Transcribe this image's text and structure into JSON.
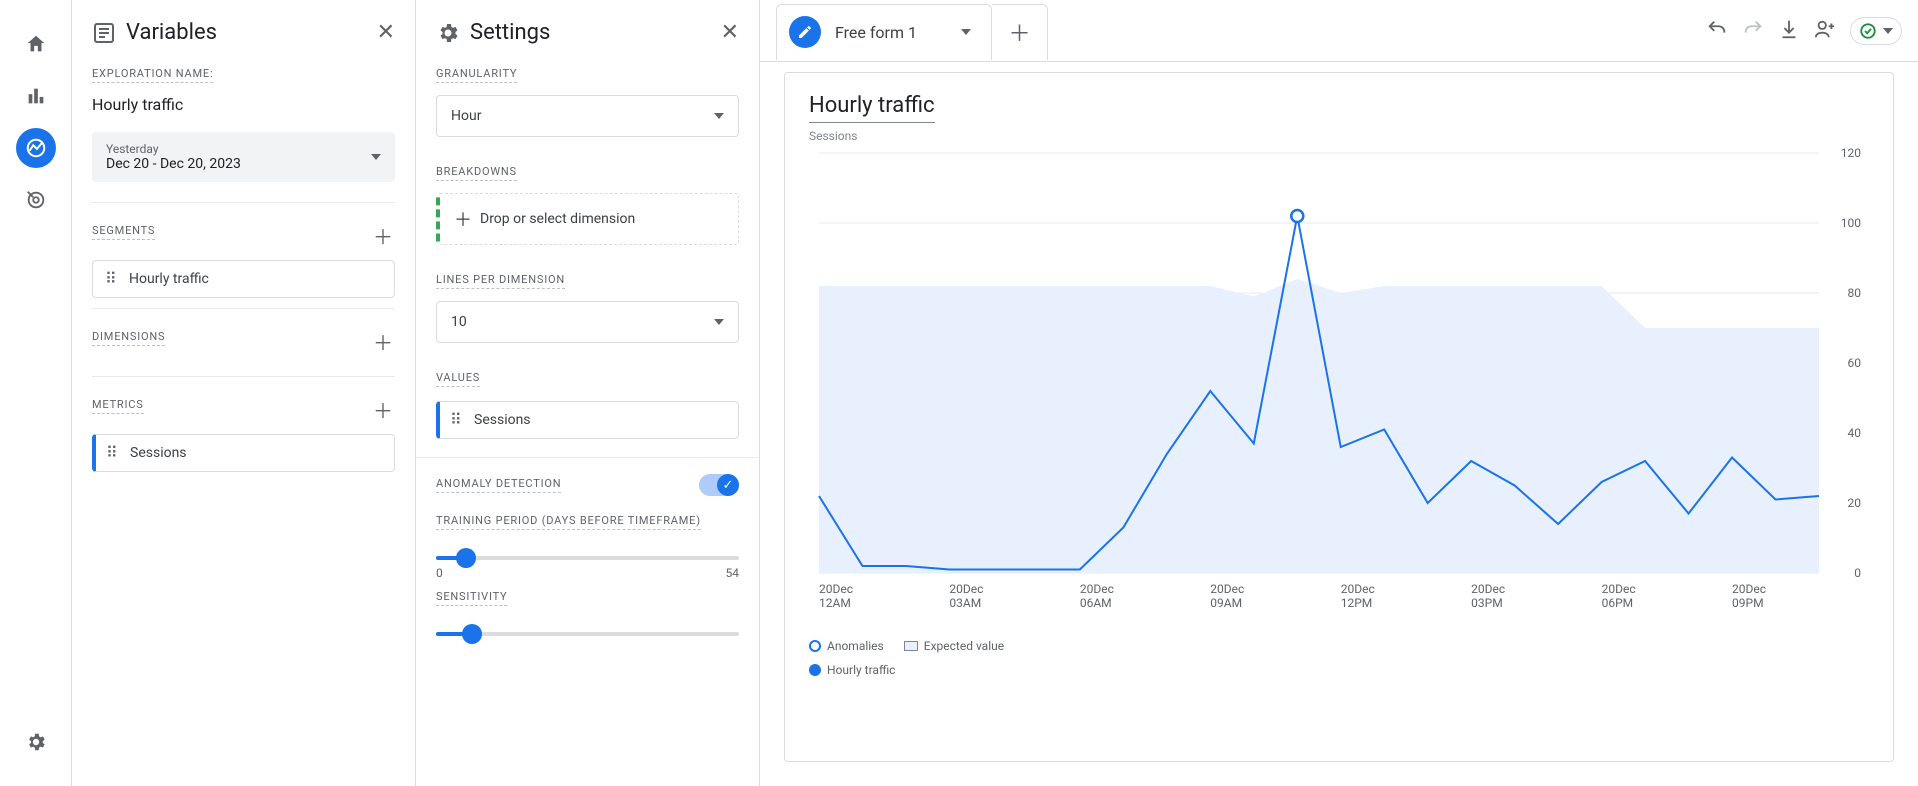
{
  "nav": {
    "icons": [
      "home",
      "reports",
      "explore",
      "advertising"
    ],
    "active": "explore"
  },
  "variables": {
    "title": "Variables",
    "exploration_label": "EXPLORATION NAME:",
    "exploration_value": "Hourly traffic",
    "date_label": "Yesterday",
    "date_range": "Dec 20 - Dec 20, 2023",
    "segments_label": "SEGMENTS",
    "segments": [
      "Hourly traffic"
    ],
    "dimensions_label": "DIMENSIONS",
    "metrics_label": "METRICS",
    "metrics": [
      "Sessions"
    ]
  },
  "settings": {
    "title": "Settings",
    "granularity_label": "GRANULARITY",
    "granularity_value": "Hour",
    "breakdowns_label": "BREAKDOWNS",
    "breakdowns_placeholder": "Drop or select dimension",
    "lines_label": "LINES PER DIMENSION",
    "lines_value": "10",
    "values_label": "VALUES",
    "values": [
      "Sessions"
    ],
    "anomaly_label": "ANOMALY DETECTION",
    "anomaly_on": true,
    "training_label": "TRAINING PERIOD (DAYS BEFORE TIMEFRAME)",
    "training_min": "0",
    "training_max": "54",
    "training_pct": 10,
    "sensitivity_label": "SENSITIVITY",
    "sensitivity_pct": 12
  },
  "tabs": {
    "active_label": "Free form 1"
  },
  "chart": {
    "title": "Hourly traffic",
    "subtitle": "Sessions",
    "type": "line",
    "y_max": 120,
    "y_ticks": [
      0,
      20,
      40,
      60,
      80,
      100,
      120
    ],
    "x_labels": [
      "20Dec 12AM",
      "20Dec 03AM",
      "20Dec 06AM",
      "20Dec 09AM",
      "20Dec 12PM",
      "20Dec 03PM",
      "20Dec 06PM",
      "20Dec 09PM"
    ],
    "line_color": "#1a73e8",
    "band_color": "#e8f0fe",
    "grid_color": "#e8eaed",
    "series": [
      22,
      2,
      2,
      1,
      1,
      1,
      1,
      13,
      34,
      52,
      37,
      102,
      36,
      41,
      20,
      32,
      25,
      14,
      26,
      32,
      17,
      33,
      21,
      22
    ],
    "band_top": [
      82,
      82,
      82,
      82,
      82,
      82,
      82,
      82,
      82,
      82,
      79,
      84,
      80,
      82,
      82,
      82,
      82,
      82,
      82,
      70,
      70,
      70,
      70,
      70
    ],
    "band_bottom": [
      0,
      0,
      0,
      0,
      0,
      0,
      0,
      0,
      0,
      0,
      0,
      0,
      0,
      0,
      0,
      0,
      0,
      0,
      0,
      0,
      0,
      0,
      0,
      0
    ],
    "anomaly_index": 11,
    "legend_anomalies": "Anomalies",
    "legend_expected": "Expected value",
    "legend_series": "Hourly traffic"
  }
}
